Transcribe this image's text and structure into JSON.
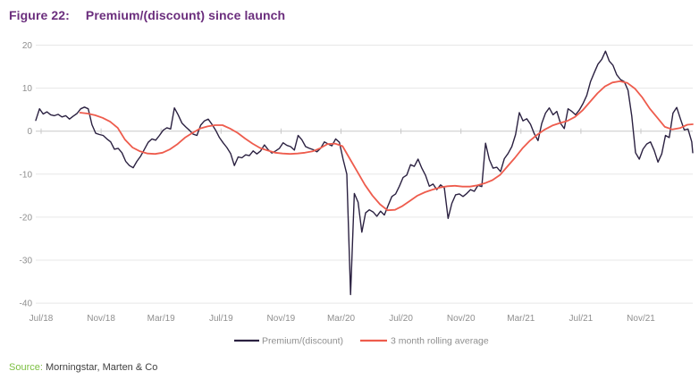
{
  "header": {
    "figure_label": "Figure 22:",
    "title": "Premium/(discount) since launch"
  },
  "source": {
    "label": "Source:",
    "text": "Morningstar, Marten & Co"
  },
  "colors": {
    "title": "#6B2E7D",
    "source_label": "#7CBF42",
    "source_text": "#3F3F3F",
    "axis_text": "#8F8F8F",
    "gridline": "#E7E7E7",
    "zero_axis": "#C9C9C9",
    "premium_line": "#2B2141",
    "rolling_avg_line": "#EE5C4D"
  },
  "chart_data": {
    "type": "line",
    "title": "Premium/(discount) since launch",
    "x_unit": "months since Jul/2018 (0 = Jul/18)",
    "y_unit": "percent",
    "xlim": [
      -0.4,
      43.6
    ],
    "ylim": [
      -40,
      20
    ],
    "grid": "horizontal",
    "yticks": [
      20,
      10,
      0,
      -10,
      -20,
      -30,
      -40
    ],
    "xticks": [
      {
        "t": 0,
        "label": "Jul/18"
      },
      {
        "t": 4,
        "label": "Nov/18"
      },
      {
        "t": 8,
        "label": "Mar/19"
      },
      {
        "t": 12,
        "label": "Jul/19"
      },
      {
        "t": 16,
        "label": "Nov/19"
      },
      {
        "t": 20,
        "label": "Mar/20"
      },
      {
        "t": 24,
        "label": "Jul/20"
      },
      {
        "t": 28,
        "label": "Nov/20"
      },
      {
        "t": 32,
        "label": "Mar/21"
      },
      {
        "t": 36,
        "label": "Jul/21"
      },
      {
        "t": 40,
        "label": "Nov/21"
      }
    ],
    "legend": {
      "position": "bottom-center",
      "entries": [
        {
          "label": "Premium/(discount)",
          "color": "#2B2141"
        },
        {
          "label": "3 month rolling average",
          "color": "#EE5C4D"
        }
      ]
    },
    "series": [
      {
        "name": "Premium/(discount)",
        "color": "#2B2141",
        "stroke_width": 1.4,
        "t_start": -0.36,
        "t_step": 0.25,
        "values": [
          2.5,
          5.2,
          4.0,
          4.5,
          3.8,
          3.6,
          3.9,
          3.3,
          3.6,
          2.8,
          3.5,
          4.1,
          5.2,
          5.6,
          5.2,
          1.5,
          -0.5,
          -0.8,
          -1.0,
          -1.8,
          -2.5,
          -4.2,
          -4.0,
          -5.0,
          -7.0,
          -8.0,
          -8.5,
          -7.0,
          -5.8,
          -4.2,
          -2.6,
          -1.8,
          -2.1,
          -1.0,
          0.2,
          0.8,
          0.5,
          5.4,
          3.8,
          1.9,
          1.0,
          0.2,
          -0.7,
          -1.0,
          1.4,
          2.4,
          2.8,
          1.6,
          0.2,
          -1.5,
          -2.7,
          -3.8,
          -5.2,
          -8.0,
          -6.0,
          -6.2,
          -5.5,
          -5.7,
          -4.6,
          -5.3,
          -4.6,
          -3.2,
          -4.3,
          -5.1,
          -4.6,
          -4.0,
          -2.7,
          -3.3,
          -3.6,
          -4.4,
          -1.0,
          -2.0,
          -3.6,
          -4.0,
          -4.3,
          -4.8,
          -4.0,
          -2.5,
          -3.0,
          -3.4,
          -1.8,
          -2.6,
          -6.5,
          -10.0,
          -38.0,
          -14.5,
          -16.5,
          -23.5,
          -19.0,
          -18.3,
          -18.8,
          -19.8,
          -18.6,
          -19.5,
          -17.3,
          -15.2,
          -14.6,
          -12.8,
          -10.8,
          -10.2,
          -7.8,
          -8.2,
          -6.5,
          -8.6,
          -10.3,
          -12.8,
          -12.3,
          -13.6,
          -12.5,
          -13.2,
          -20.3,
          -16.8,
          -14.8,
          -14.6,
          -15.2,
          -14.5,
          -13.6,
          -14.0,
          -12.6,
          -12.9,
          -2.8,
          -6.6,
          -8.6,
          -8.4,
          -9.4,
          -6.4,
          -5.2,
          -3.6,
          -0.8,
          4.3,
          2.4,
          2.9,
          1.6,
          -0.6,
          -2.2,
          1.8,
          4.2,
          5.4,
          3.8,
          4.6,
          1.8,
          0.6,
          5.2,
          4.6,
          3.8,
          4.9,
          6.4,
          8.3,
          11.5,
          13.6,
          15.6,
          16.7,
          18.6,
          16.3,
          15.3,
          13.1,
          12.0,
          11.5,
          9.5,
          3.5,
          -5.0,
          -6.5,
          -4.2,
          -3.0,
          -2.5,
          -4.5,
          -7.2,
          -5.3,
          -1.0,
          -1.5,
          4.2,
          5.5,
          2.8,
          0.3,
          0.5,
          -2.5,
          -5.0
        ]
      },
      {
        "name": "3 month rolling average",
        "color": "#EE5C4D",
        "stroke_width": 1.8,
        "t_start": 2.6,
        "t_step": 0.5,
        "values": [
          4.3,
          4.1,
          3.7,
          3.1,
          2.2,
          0.8,
          -2.0,
          -3.8,
          -4.7,
          -5.2,
          -5.3,
          -5.0,
          -4.2,
          -3.0,
          -1.5,
          -0.4,
          0.6,
          1.1,
          1.4,
          1.4,
          0.6,
          -0.4,
          -1.7,
          -2.9,
          -3.9,
          -4.5,
          -5.0,
          -5.2,
          -5.3,
          -5.2,
          -5.0,
          -4.7,
          -4.0,
          -3.0,
          -2.9,
          -3.5,
          -6.5,
          -9.5,
          -12.5,
          -15.0,
          -17.0,
          -18.4,
          -18.3,
          -17.4,
          -16.2,
          -15.0,
          -14.2,
          -13.6,
          -13.1,
          -12.8,
          -12.7,
          -12.9,
          -12.9,
          -12.6,
          -12.1,
          -11.4,
          -10.2,
          -8.2,
          -6.2,
          -4.0,
          -2.2,
          -0.8,
          0.4,
          1.3,
          1.9,
          2.4,
          3.3,
          4.8,
          6.8,
          8.8,
          10.4,
          11.3,
          11.6,
          11.2,
          9.9,
          7.8,
          5.2,
          3.1,
          1.0,
          0.4,
          0.7,
          1.5,
          1.6
        ]
      }
    ]
  }
}
